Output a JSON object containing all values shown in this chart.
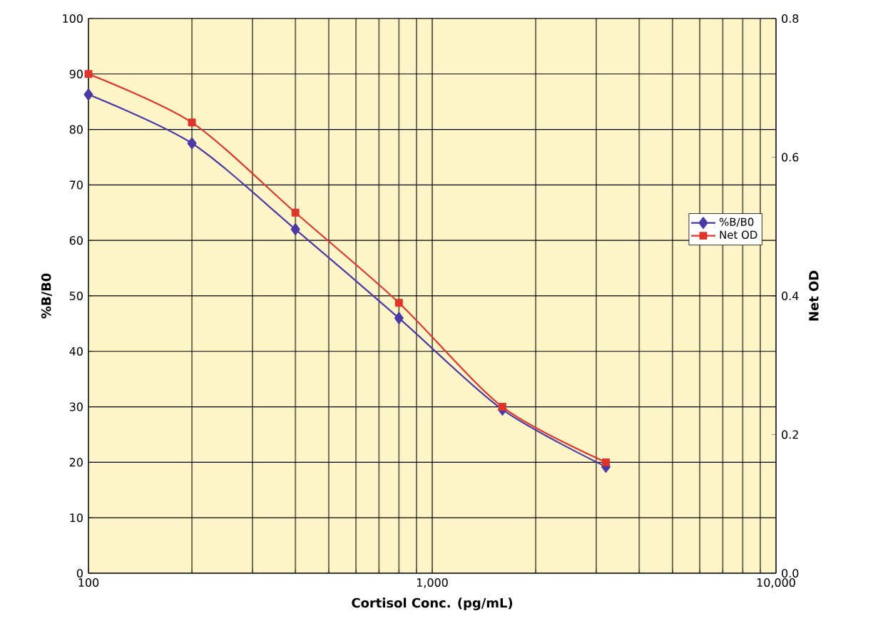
{
  "chart_data": {
    "type": "line",
    "xlabel": "Cortisol Conc. (pg/mL)",
    "ylabel": "%B/B0",
    "y2label": "Net OD",
    "x": [
      100,
      200,
      400,
      800,
      1600,
      3200
    ],
    "series": [
      {
        "name": "%B/B0",
        "color": "#4b3aa6",
        "marker": "diamond",
        "line_style": "solid",
        "values": [
          86.3,
          77.5,
          62,
          46,
          29.5,
          19.2
        ]
      },
      {
        "name": "Net OD",
        "color": "#e0352b",
        "marker": "square",
        "line_style": "solid",
        "axis": "y2",
        "values": [
          0.72,
          0.65,
          0.52,
          0.39,
          0.24,
          0.16
        ]
      }
    ],
    "log": "x",
    "xlim": [
      100,
      10000
    ],
    "xticks": [
      100,
      {
        "value": 1000,
        "label": "1,000"
      },
      {
        "value": 10000,
        "label": "10,000"
      }
    ],
    "ylim": [
      0,
      100
    ],
    "yticks": [
      0,
      10,
      20,
      30,
      40,
      50,
      60,
      70,
      80,
      90,
      100
    ],
    "y2lim": [
      0,
      0.8
    ],
    "y2ticks": [
      {
        "value": 0,
        "label": "0.0"
      },
      0.2,
      0.4,
      0.6,
      0.8
    ],
    "grid": true,
    "legend": "right"
  }
}
